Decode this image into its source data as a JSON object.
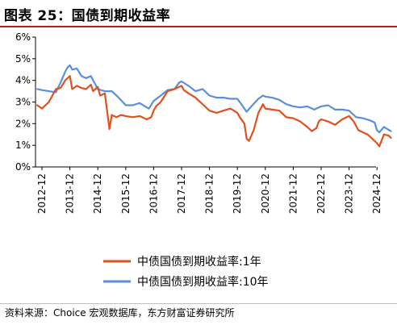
{
  "figure": {
    "title": "图表 25：国债到期收益率",
    "source": "资料来源：Choice 宏观数据库，东方财富证券研究所"
  },
  "colors": {
    "y1": "#e2501f",
    "y10": "#5b8fd9"
  },
  "chart_data": {
    "type": "line",
    "title": "",
    "xlabel": "",
    "ylabel": "",
    "ylim": [
      0,
      6
    ],
    "yticks": [
      "0%",
      "1%",
      "2%",
      "3%",
      "4%",
      "5%",
      "6%"
    ],
    "xticks": [
      "2012-12",
      "2013-12",
      "2014-12",
      "2015-12",
      "2016-12",
      "2017-12",
      "2018-12",
      "2019-12",
      "2020-12",
      "2021-12",
      "2022-12",
      "2023-12",
      "2024-12"
    ],
    "grid": false,
    "legend": "bottom",
    "series": [
      {
        "name": "中债国债到期收益率:1年",
        "x": [
          "2012-10",
          "2012-12",
          "2013-03",
          "2013-06",
          "2013-08",
          "2013-10",
          "2013-11",
          "2013-12",
          "2014-01",
          "2014-03",
          "2014-05",
          "2014-07",
          "2014-09",
          "2014-10",
          "2014-12",
          "2015-01",
          "2015-03",
          "2015-04",
          "2015-05",
          "2015-06",
          "2015-08",
          "2015-10",
          "2015-12",
          "2016-03",
          "2016-06",
          "2016-09",
          "2016-11",
          "2016-12",
          "2017-01",
          "2017-03",
          "2017-06",
          "2017-09",
          "2017-12",
          "2018-01",
          "2018-03",
          "2018-06",
          "2018-09",
          "2018-12",
          "2019-03",
          "2019-06",
          "2019-09",
          "2019-12",
          "2020-01",
          "2020-03",
          "2020-04",
          "2020-05",
          "2020-07",
          "2020-09",
          "2020-11",
          "2020-12",
          "2021-03",
          "2021-06",
          "2021-09",
          "2021-12",
          "2022-03",
          "2022-06",
          "2022-08",
          "2022-10",
          "2022-11",
          "2022-12",
          "2023-03",
          "2023-06",
          "2023-09",
          "2023-12",
          "2024-02",
          "2024-04",
          "2024-06",
          "2024-08",
          "2024-09",
          "2024-11",
          "2024-12",
          "2025-01",
          "2025-03",
          "2025-05",
          "2025-06"
        ],
        "values": [
          2.85,
          2.7,
          3.0,
          3.6,
          3.65,
          4.0,
          4.1,
          4.2,
          3.6,
          3.75,
          3.65,
          3.6,
          3.8,
          3.5,
          3.7,
          3.3,
          3.4,
          2.6,
          1.75,
          2.4,
          2.3,
          2.4,
          2.35,
          2.3,
          2.35,
          2.2,
          2.3,
          2.6,
          2.8,
          3.0,
          3.5,
          3.6,
          3.75,
          3.55,
          3.4,
          3.2,
          2.9,
          2.6,
          2.5,
          2.6,
          2.7,
          2.5,
          2.3,
          2.0,
          1.3,
          1.2,
          1.7,
          2.5,
          2.9,
          2.7,
          2.65,
          2.6,
          2.3,
          2.25,
          2.1,
          1.85,
          1.65,
          1.8,
          2.1,
          2.2,
          2.1,
          1.95,
          2.2,
          2.35,
          2.1,
          1.7,
          1.6,
          1.5,
          1.4,
          1.2,
          1.1,
          0.95,
          1.5,
          1.45,
          1.35
        ]
      },
      {
        "name": "中债国债到期收益率:10年",
        "x": [
          "2012-10",
          "2012-12",
          "2013-03",
          "2013-06",
          "2013-08",
          "2013-10",
          "2013-11",
          "2013-12",
          "2014-01",
          "2014-03",
          "2014-05",
          "2014-07",
          "2014-09",
          "2014-12",
          "2015-03",
          "2015-06",
          "2015-09",
          "2015-12",
          "2016-03",
          "2016-06",
          "2016-09",
          "2016-10",
          "2016-12",
          "2017-03",
          "2017-06",
          "2017-09",
          "2017-11",
          "2017-12",
          "2018-03",
          "2018-06",
          "2018-09",
          "2018-12",
          "2019-03",
          "2019-06",
          "2019-09",
          "2019-12",
          "2020-02",
          "2020-04",
          "2020-06",
          "2020-09",
          "2020-11",
          "2020-12",
          "2021-03",
          "2021-06",
          "2021-09",
          "2021-12",
          "2022-03",
          "2022-06",
          "2022-09",
          "2022-12",
          "2023-03",
          "2023-06",
          "2023-09",
          "2023-12",
          "2024-03",
          "2024-06",
          "2024-09",
          "2024-11",
          "2024-12",
          "2025-01",
          "2025-03",
          "2025-06"
        ],
        "values": [
          3.6,
          3.55,
          3.5,
          3.45,
          3.9,
          4.4,
          4.6,
          4.7,
          4.5,
          4.55,
          4.2,
          4.1,
          4.2,
          3.6,
          3.5,
          3.5,
          3.2,
          2.85,
          2.85,
          2.95,
          2.75,
          2.7,
          3.05,
          3.3,
          3.55,
          3.6,
          3.9,
          3.95,
          3.75,
          3.5,
          3.6,
          3.3,
          3.2,
          3.2,
          3.15,
          3.15,
          2.85,
          2.55,
          2.8,
          3.15,
          3.3,
          3.25,
          3.2,
          3.1,
          2.9,
          2.8,
          2.75,
          2.8,
          2.65,
          2.8,
          2.85,
          2.65,
          2.65,
          2.6,
          2.3,
          2.25,
          2.15,
          2.05,
          1.7,
          1.6,
          1.85,
          1.65
        ]
      }
    ]
  }
}
